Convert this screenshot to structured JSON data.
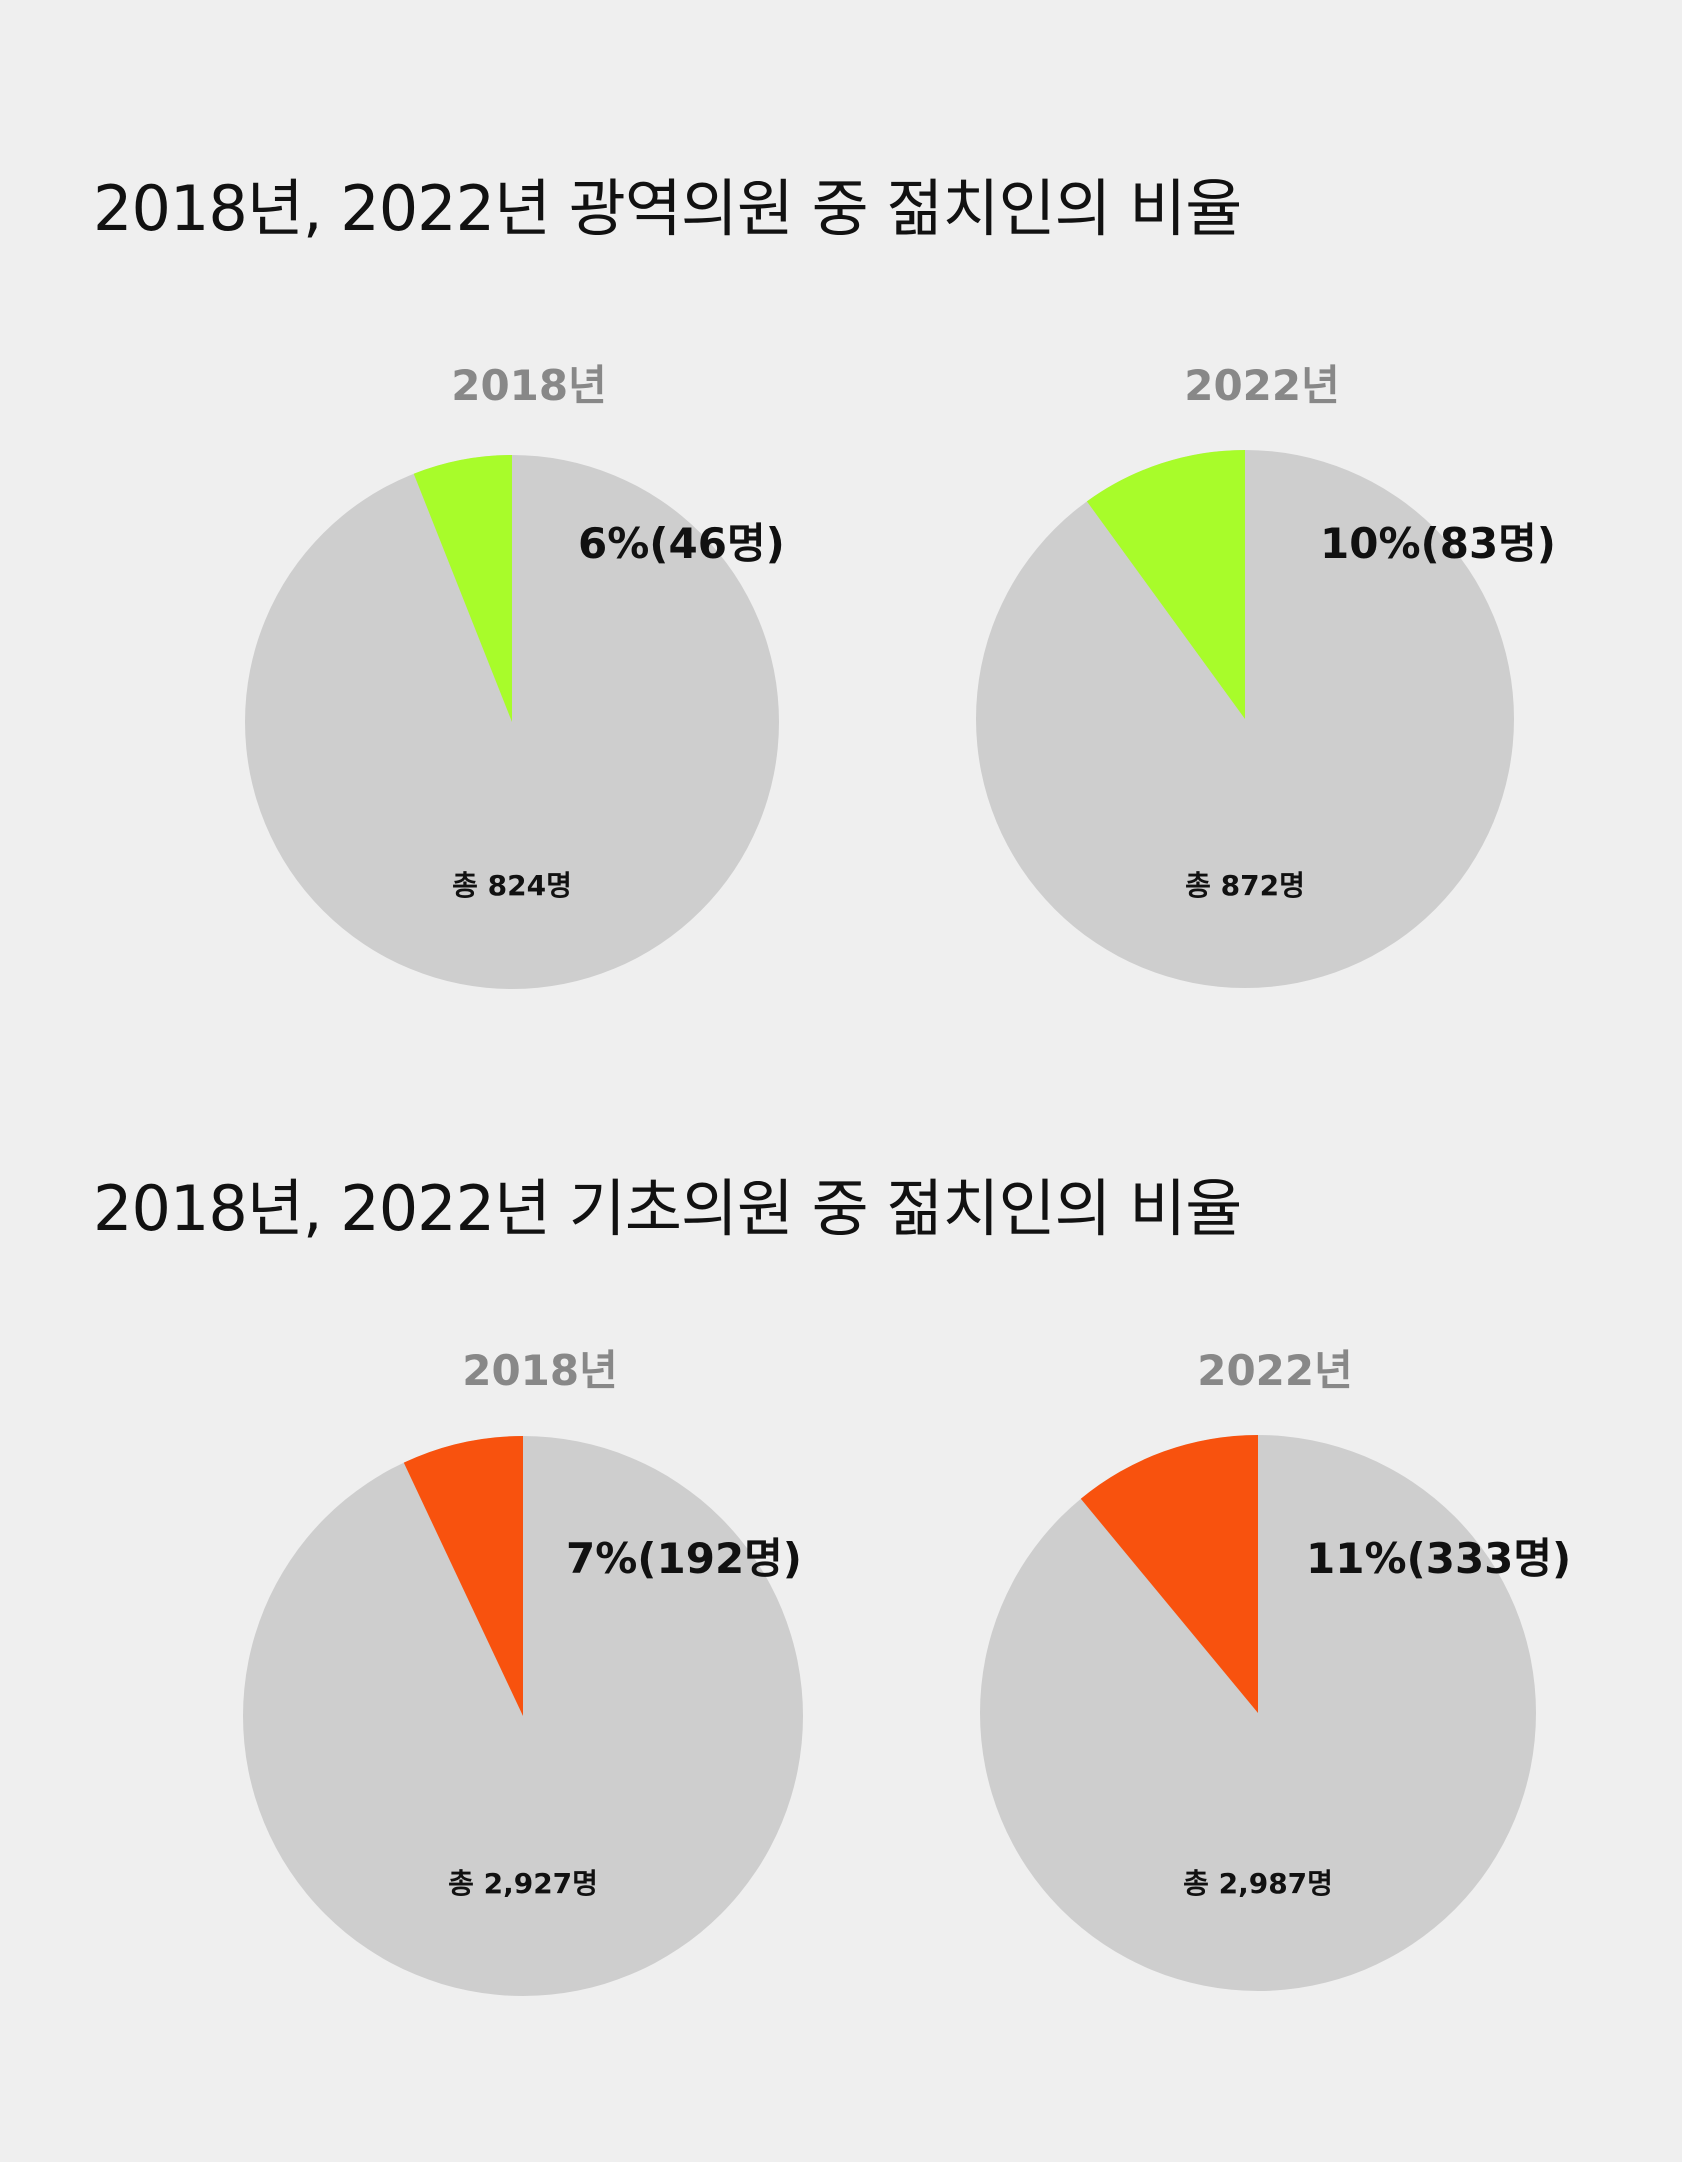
{
  "chart_data": [
    {
      "type": "pie",
      "title": "2018년, 2022년 광역의원 중 젊치인의 비율",
      "accent_color": "#a8fc2a",
      "rest_color": "#cecece",
      "charts": [
        {
          "year_label": "2018년",
          "highlight_percent": 6,
          "highlight_label": "6%(46명)",
          "total_label": "총 824명"
        },
        {
          "year_label": "2022년",
          "highlight_percent": 10,
          "highlight_label": "10%(83명)",
          "total_label": "총 872명"
        }
      ]
    },
    {
      "type": "pie",
      "title": "2018년, 2022년 기초의원 중 젊치인의 비율",
      "accent_color": "#f8520e",
      "rest_color": "#cecece",
      "charts": [
        {
          "year_label": "2018년",
          "highlight_percent": 7,
          "highlight_label": "7%(192명)",
          "total_label": "총 2,927명"
        },
        {
          "year_label": "2022년",
          "highlight_percent": 11,
          "highlight_label": "11%(333명)",
          "total_label": "총 2,987명"
        }
      ]
    }
  ]
}
